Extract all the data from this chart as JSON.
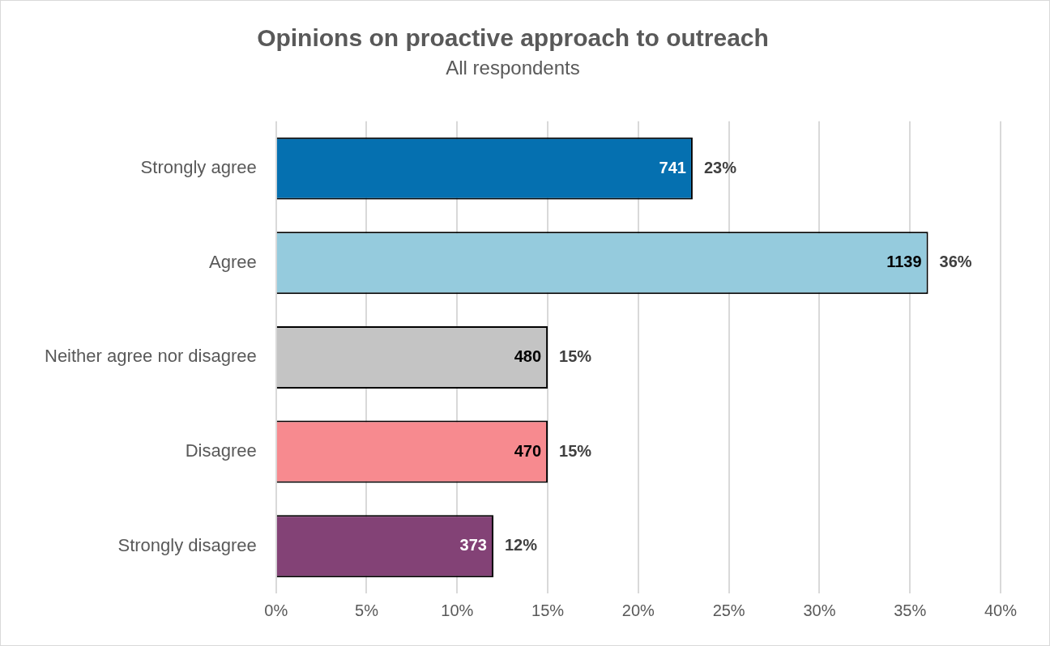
{
  "chart_data": {
    "type": "bar",
    "orientation": "horizontal",
    "title": "Opinions on proactive approach to outreach",
    "subtitle": "All respondents",
    "categories": [
      "Strongly agree",
      "Agree",
      "Neither agree nor disagree",
      "Disagree",
      "Strongly disagree"
    ],
    "values": [
      23,
      36,
      15,
      15,
      12
    ],
    "colors": [
      "#0570b0",
      "#95cbdd",
      "#c4c4c4",
      "#f78a8f",
      "#834276"
    ],
    "value_labels": [
      "23%",
      "36%",
      "15%",
      "15%",
      "12%"
    ],
    "annotations": [
      {
        "text": "741",
        "x": 23,
        "y": "Strongly agree"
      },
      {
        "text": "1139",
        "x": 36,
        "y": "Agree"
      },
      {
        "text": "480",
        "x": 15,
        "y": "Neither agree nor disagree"
      },
      {
        "text": "470",
        "x": 15,
        "y": "Disagree"
      },
      {
        "text": "373",
        "x": 12,
        "y": "Strongly disagree"
      }
    ],
    "xlim": [
      0,
      40
    ],
    "xticks": [
      {
        "value": 0,
        "label": "0%"
      },
      {
        "value": 5,
        "label": "5%"
      },
      {
        "value": 10,
        "label": "10%"
      },
      {
        "value": 15,
        "label": "15%"
      },
      {
        "value": 20,
        "label": "20%"
      },
      {
        "value": 25,
        "label": "25%"
      },
      {
        "value": 30,
        "label": "30%"
      },
      {
        "value": 35,
        "label": "35%"
      },
      {
        "value": 40,
        "label": "40%"
      }
    ],
    "grid": "x",
    "legend": false
  }
}
